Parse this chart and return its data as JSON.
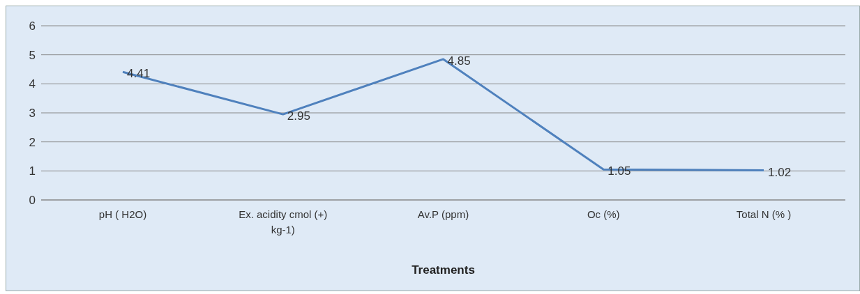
{
  "chart_data": {
    "type": "line",
    "xlabel": "Treatments",
    "categories": [
      "pH ( H2O)",
      "Ex. acidity cmol (+) kg-1)",
      "Av.P (ppm)",
      "Oc (%)",
      "Total N (% )"
    ],
    "series": [
      {
        "color": "#4f81bd",
        "values": [
          4.41,
          2.95,
          4.85,
          1.05,
          1.02
        ]
      }
    ],
    "ylim": [
      0,
      6
    ],
    "yticks": [
      0,
      1,
      2,
      3,
      4,
      5,
      6
    ],
    "grid": "y",
    "data_labels": true,
    "marker": "none",
    "line_style": "solid"
  }
}
